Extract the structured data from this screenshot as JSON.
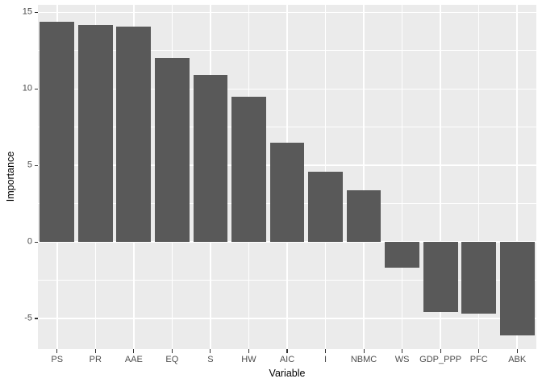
{
  "chart_data": {
    "type": "bar",
    "title": "",
    "xlabel": "Variable",
    "ylabel": "Importance",
    "categories": [
      "PS",
      "PR",
      "AAE",
      "EQ",
      "S",
      "HW",
      "AIC",
      "I",
      "NBMC",
      "WS",
      "GDP_PPP",
      "PFC",
      "ABK"
    ],
    "values": [
      14.4,
      14.2,
      14.1,
      12.0,
      10.9,
      9.5,
      6.5,
      4.6,
      3.4,
      -1.7,
      -4.6,
      -4.7,
      -6.1
    ],
    "yticks": [
      -5,
      0,
      5,
      10,
      15
    ],
    "ylim": [
      -7.0,
      15.5
    ],
    "grid": "major-and-minor-horizontal, major-vertical-at-category-centers",
    "legend": "none",
    "bar_width_fraction": 0.9,
    "colors": {
      "bar_fill": "#595959",
      "panel_bg": "#EBEBEB",
      "grid": "#FFFFFF",
      "axis_text": "#4D4D4D",
      "axis_title": "#000000",
      "tick_mark": "#333333",
      "background": "#FFFFFF"
    }
  }
}
